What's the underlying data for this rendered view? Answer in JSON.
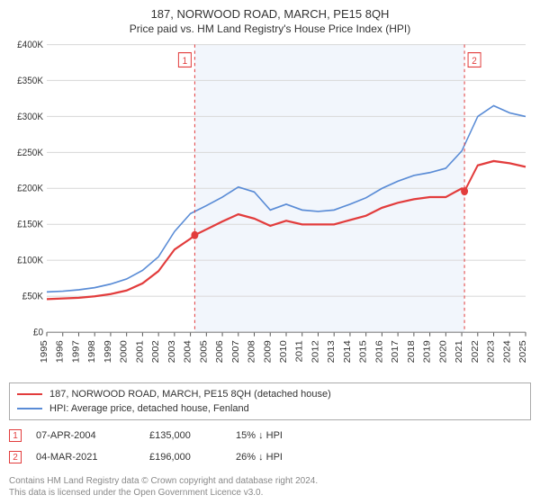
{
  "titles": {
    "main": "187, NORWOOD ROAD, MARCH, PE15 8QH",
    "sub": "Price paid vs. HM Land Registry's House Price Index (HPI)"
  },
  "chart": {
    "type": "line",
    "background_color": "#ffffff",
    "shaded_background_color": "#e8effa",
    "grid_color": "#dcdcdc",
    "axis_color": "#555555",
    "label_fontsize": 10,
    "ylim": [
      0,
      400000
    ],
    "ytick_step": 50000,
    "yticks": [
      "£0",
      "£50K",
      "£100K",
      "£150K",
      "£200K",
      "£250K",
      "£300K",
      "£350K",
      "£400K"
    ],
    "xlim": [
      1995,
      2025
    ],
    "xticks": [
      "1995",
      "1996",
      "1997",
      "1998",
      "1999",
      "2000",
      "2001",
      "2002",
      "2003",
      "2004",
      "2005",
      "2006",
      "2007",
      "2008",
      "2009",
      "2010",
      "2011",
      "2012",
      "2013",
      "2014",
      "2015",
      "2016",
      "2017",
      "2018",
      "2019",
      "2020",
      "2021",
      "2022",
      "2023",
      "2024",
      "2025"
    ],
    "shaded_range": [
      2004.27,
      2021.17
    ],
    "series": [
      {
        "id": "price_paid",
        "color": "#e23c3c",
        "line_width": 2,
        "data": [
          [
            1995,
            46000
          ],
          [
            1996,
            47000
          ],
          [
            1997,
            48000
          ],
          [
            1998,
            50000
          ],
          [
            1999,
            53000
          ],
          [
            2000,
            58000
          ],
          [
            2001,
            68000
          ],
          [
            2002,
            85000
          ],
          [
            2003,
            115000
          ],
          [
            2004,
            130000
          ],
          [
            2004.27,
            135000
          ],
          [
            2005,
            143000
          ],
          [
            2006,
            154000
          ],
          [
            2007,
            164000
          ],
          [
            2008,
            158000
          ],
          [
            2009,
            148000
          ],
          [
            2010,
            155000
          ],
          [
            2011,
            150000
          ],
          [
            2012,
            150000
          ],
          [
            2013,
            150000
          ],
          [
            2014,
            156000
          ],
          [
            2015,
            162000
          ],
          [
            2016,
            173000
          ],
          [
            2017,
            180000
          ],
          [
            2018,
            185000
          ],
          [
            2019,
            188000
          ],
          [
            2020,
            188000
          ],
          [
            2021,
            200000
          ],
          [
            2021.17,
            196000
          ],
          [
            2022,
            232000
          ],
          [
            2023,
            238000
          ],
          [
            2024,
            235000
          ],
          [
            2025,
            230000
          ]
        ]
      },
      {
        "id": "hpi",
        "color": "#5a8cd6",
        "line_width": 1.5,
        "data": [
          [
            1995,
            56000
          ],
          [
            1996,
            57000
          ],
          [
            1997,
            59000
          ],
          [
            1998,
            62000
          ],
          [
            1999,
            67000
          ],
          [
            2000,
            74000
          ],
          [
            2001,
            86000
          ],
          [
            2002,
            105000
          ],
          [
            2003,
            140000
          ],
          [
            2004,
            165000
          ],
          [
            2005,
            176000
          ],
          [
            2006,
            188000
          ],
          [
            2007,
            202000
          ],
          [
            2008,
            195000
          ],
          [
            2009,
            170000
          ],
          [
            2010,
            178000
          ],
          [
            2011,
            170000
          ],
          [
            2012,
            168000
          ],
          [
            2013,
            170000
          ],
          [
            2014,
            178000
          ],
          [
            2015,
            187000
          ],
          [
            2016,
            200000
          ],
          [
            2017,
            210000
          ],
          [
            2018,
            218000
          ],
          [
            2019,
            222000
          ],
          [
            2020,
            228000
          ],
          [
            2021,
            252000
          ],
          [
            2022,
            300000
          ],
          [
            2023,
            315000
          ],
          [
            2024,
            305000
          ],
          [
            2025,
            300000
          ]
        ]
      }
    ],
    "markers": [
      {
        "id": 1,
        "label": "1",
        "x": 2004.27,
        "y": 135000,
        "dot_y": 135000,
        "box_side": "left"
      },
      {
        "id": 2,
        "label": "2",
        "x": 2021.17,
        "y": 196000,
        "dot_y": 196000,
        "box_side": "right"
      }
    ]
  },
  "legend": {
    "items": [
      {
        "color": "#e23c3c",
        "label": "187, NORWOOD ROAD, MARCH, PE15 8QH (detached house)"
      },
      {
        "color": "#5a8cd6",
        "label": "HPI: Average price, detached house, Fenland"
      }
    ]
  },
  "events": [
    {
      "marker": "1",
      "date": "07-APR-2004",
      "price": "£135,000",
      "diff": "15% ↓ HPI"
    },
    {
      "marker": "2",
      "date": "04-MAR-2021",
      "price": "£196,000",
      "diff": "26% ↓ HPI"
    }
  ],
  "footer": {
    "line1": "Contains HM Land Registry data © Crown copyright and database right 2024.",
    "line2": "This data is licensed under the Open Government Licence v3.0."
  }
}
